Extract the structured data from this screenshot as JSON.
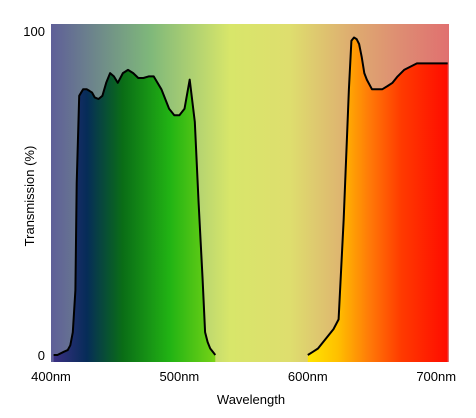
{
  "chart_data": {
    "type": "line",
    "title": "",
    "xlabel": "Wavelength",
    "ylabel": "Transmission (%)",
    "xlim": [
      400,
      710
    ],
    "ylim": [
      0,
      100
    ],
    "x_ticks": [
      {
        "value": 400,
        "label": "400nm"
      },
      {
        "value": 500,
        "label": "500nm"
      },
      {
        "value": 600,
        "label": "600nm"
      },
      {
        "value": 700,
        "label": "700nm"
      }
    ],
    "y_ticks": [
      {
        "value": 0,
        "label": "0"
      },
      {
        "value": 100,
        "label": "100"
      }
    ],
    "grid": false,
    "legend": "none",
    "background": "visible spectrum gradient",
    "series": [
      {
        "color": "#000000",
        "x": [
          402,
          405,
          410,
          413,
          415,
          417,
          419,
          420,
          422,
          425,
          428,
          430,
          432,
          434,
          437,
          440,
          443,
          446,
          449,
          452,
          456,
          460,
          464,
          468,
          472,
          476,
          480,
          486,
          492,
          496,
          500,
          504,
          508,
          512,
          515,
          518,
          520,
          522,
          524,
          526,
          528,
          532,
          536,
          540,
          544,
          548,
          552,
          556,
          560,
          565,
          570,
          575,
          580,
          585,
          590,
          595,
          600,
          604,
          608,
          612,
          616,
          620,
          624,
          628,
          632,
          634,
          636,
          638,
          640,
          642,
          644,
          646,
          650,
          654,
          658,
          662,
          666,
          670,
          675,
          680,
          685,
          690,
          695,
          700,
          705,
          709
        ],
        "y": [
          0,
          0,
          1,
          1.5,
          3,
          7,
          20,
          53,
          80,
          82,
          82,
          81.5,
          81,
          79.5,
          79,
          80,
          84,
          87,
          86,
          84,
          87,
          88,
          87,
          85.5,
          85.5,
          86,
          86,
          82,
          76,
          74,
          74,
          76,
          85,
          72,
          47,
          24,
          7,
          4,
          2,
          1,
          0,
          null,
          null,
          null,
          null,
          null,
          null,
          null,
          null,
          null,
          null,
          null,
          null,
          null,
          null,
          null,
          0,
          1,
          2,
          4,
          6,
          8,
          11,
          42,
          82,
          97,
          98,
          97.5,
          96,
          92,
          87,
          85,
          82,
          82,
          82,
          83,
          84,
          86,
          88,
          89,
          90,
          90,
          90,
          90,
          90,
          90
        ]
      }
    ]
  }
}
